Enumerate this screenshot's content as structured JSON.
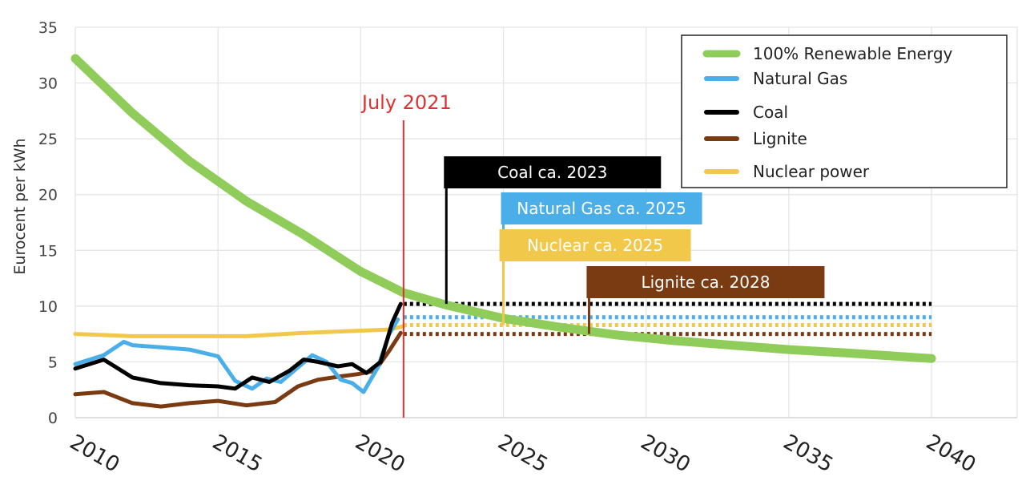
{
  "chart_data": {
    "type": "line",
    "title": "",
    "xlabel": "",
    "ylabel": "Eurocent per kWh",
    "xlim": [
      2010,
      2043
    ],
    "ylim": [
      0,
      35
    ],
    "x_ticks": [
      "2010",
      "2015",
      "2020",
      "2025",
      "2030",
      "2035",
      "2040"
    ],
    "y_ticks": [
      "0",
      "5",
      "10",
      "15",
      "20",
      "25",
      "30",
      "35"
    ],
    "grid": true,
    "legend_position": "top-right",
    "marker": {
      "label": "July 2021",
      "x": 2021.5,
      "color": "#e03030"
    },
    "series": [
      {
        "name": "100% Renewable Energy",
        "color": "#8fcc5a",
        "x": [
          2010,
          2012,
          2014,
          2016,
          2018,
          2020,
          2021.5,
          2023,
          2025,
          2027,
          2029,
          2031,
          2033,
          2035,
          2037,
          2040
        ],
        "y": [
          32.2,
          27.3,
          23.0,
          19.4,
          16.4,
          13.1,
          11.2,
          10.1,
          8.9,
          8.1,
          7.4,
          6.9,
          6.5,
          6.1,
          5.8,
          5.3
        ]
      },
      {
        "name": "Natural Gas",
        "color": "#4aaee8",
        "x": [
          2010,
          2011,
          2011.7,
          2012,
          2013,
          2014,
          2015,
          2015.6,
          2016.2,
          2016.7,
          2017.2,
          2017.8,
          2018.3,
          2018.8,
          2019.3,
          2019.7,
          2020.1,
          2020.6,
          2021,
          2021.3
        ],
        "y": [
          4.8,
          5.6,
          6.8,
          6.5,
          6.3,
          6.1,
          5.5,
          3.3,
          2.6,
          3.5,
          3.2,
          4.5,
          5.6,
          5.0,
          3.4,
          3.1,
          2.3,
          4.5,
          7.5,
          8.8
        ]
      },
      {
        "name": "Coal",
        "color": "#000000",
        "x": [
          2010,
          2011,
          2012,
          2013,
          2014,
          2015,
          2015.6,
          2016.2,
          2016.8,
          2017.5,
          2018,
          2018.5,
          2019.2,
          2019.7,
          2020.2,
          2020.7,
          2021.1,
          2021.4
        ],
        "y": [
          4.4,
          5.2,
          3.6,
          3.1,
          2.9,
          2.8,
          2.6,
          3.6,
          3.2,
          4.2,
          5.2,
          5.0,
          4.6,
          4.8,
          4.0,
          5.0,
          8.5,
          10.2
        ]
      },
      {
        "name": "Lignite",
        "color": "#7a3b12",
        "x": [
          2010,
          2011,
          2012,
          2013,
          2014,
          2015,
          2016,
          2017,
          2017.8,
          2018.5,
          2019.3,
          2019.9,
          2020.5,
          2021,
          2021.4
        ],
        "y": [
          2.1,
          2.3,
          1.3,
          1.0,
          1.3,
          1.5,
          1.1,
          1.4,
          2.8,
          3.4,
          3.7,
          3.9,
          4.2,
          6.0,
          7.6
        ]
      },
      {
        "name": "Nuclear power",
        "color": "#f2c84a",
        "x": [
          2010,
          2012,
          2014,
          2016,
          2018,
          2020,
          2021,
          2021.5
        ],
        "y": [
          7.5,
          7.3,
          7.3,
          7.3,
          7.6,
          7.8,
          7.9,
          8.2
        ]
      }
    ],
    "projections": [
      {
        "name": "Coal",
        "y": 10.2,
        "x_start": 2021.5,
        "x_end": 2040,
        "color": "#000000"
      },
      {
        "name": "Natural Gas",
        "y": 9.0,
        "x_start": 2021.5,
        "x_end": 2040,
        "color": "#4aaee8"
      },
      {
        "name": "Nuclear power",
        "y": 8.3,
        "x_start": 2021.5,
        "x_end": 2040,
        "color": "#f2c84a"
      },
      {
        "name": "Lignite",
        "y": 7.5,
        "x_start": 2021.5,
        "x_end": 2040,
        "color": "#7a3b12"
      }
    ],
    "annotations": [
      {
        "label": "Coal ca. 2023",
        "x": 2023,
        "color": "#000000",
        "level": 1
      },
      {
        "label": "Natural Gas ca. 2025",
        "x": 2025,
        "color": "#4aaee8",
        "level": 2
      },
      {
        "label": "Nuclear ca. 2025",
        "x": 2025,
        "color": "#f2c84a",
        "level": 3
      },
      {
        "label": "Lignite ca. 2028",
        "x": 2028,
        "color": "#7a3b12",
        "level": 4
      }
    ]
  }
}
